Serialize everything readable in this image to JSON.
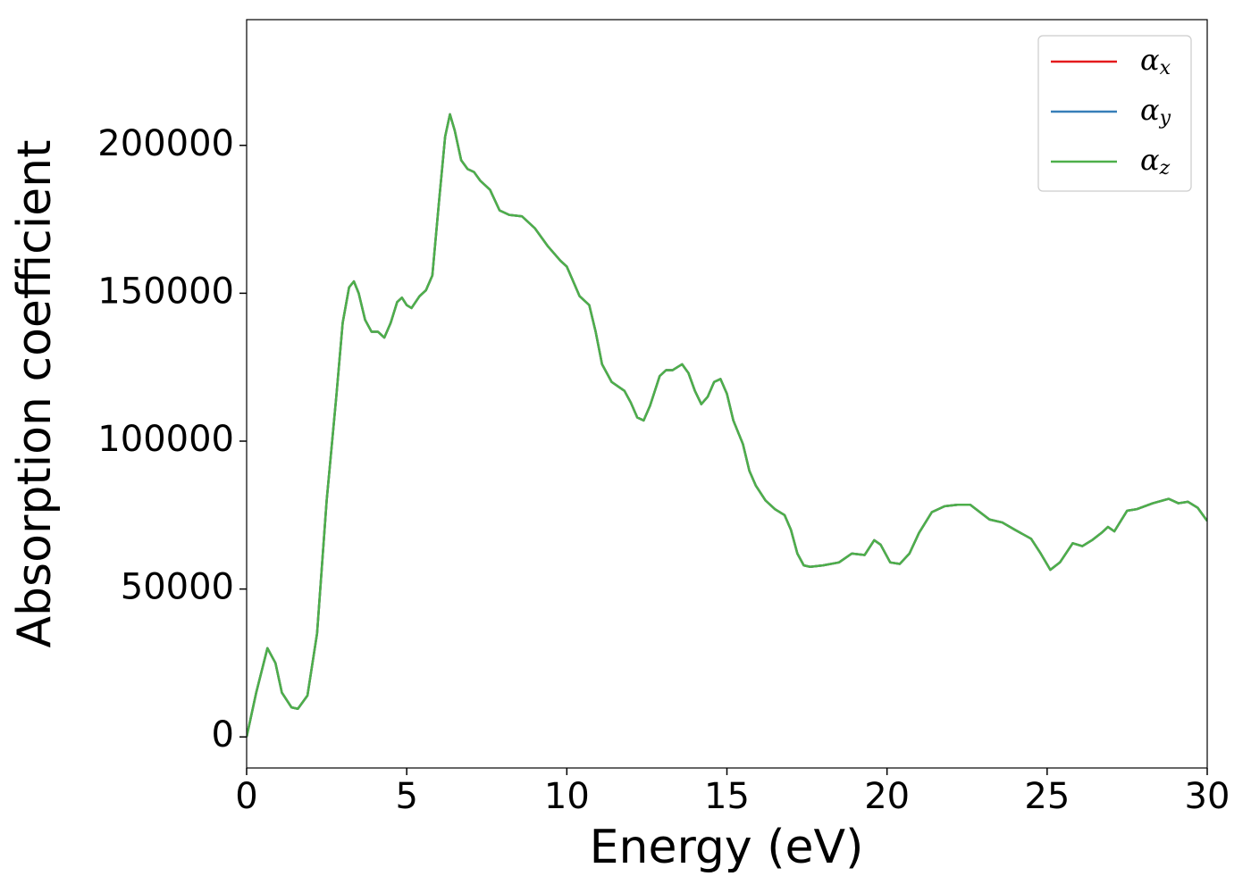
{
  "chart_data": {
    "type": "line",
    "xlabel": "Energy (eV)",
    "ylabel": "Absorption coefficient",
    "x": [
      0,
      0.3,
      0.65,
      0.9,
      1.1,
      1.4,
      1.6,
      1.9,
      2.2,
      2.5,
      2.8,
      3.0,
      3.2,
      3.35,
      3.5,
      3.7,
      3.9,
      4.1,
      4.3,
      4.5,
      4.7,
      4.85,
      5.0,
      5.15,
      5.4,
      5.6,
      5.8,
      6.0,
      6.2,
      6.35,
      6.5,
      6.7,
      6.9,
      7.1,
      7.3,
      7.6,
      7.9,
      8.2,
      8.6,
      9.0,
      9.4,
      9.8,
      10.0,
      10.2,
      10.4,
      10.7,
      10.9,
      11.1,
      11.4,
      11.8,
      12.0,
      12.2,
      12.4,
      12.6,
      12.9,
      13.1,
      13.3,
      13.6,
      13.8,
      14.0,
      14.2,
      14.4,
      14.6,
      14.8,
      15.0,
      15.2,
      15.5,
      15.7,
      15.9,
      16.2,
      16.5,
      16.8,
      17.0,
      17.2,
      17.4,
      17.6,
      18.0,
      18.5,
      18.9,
      19.3,
      19.6,
      19.8,
      20.1,
      20.4,
      20.7,
      21.0,
      21.4,
      21.8,
      22.2,
      22.6,
      22.9,
      23.2,
      23.6,
      24.0,
      24.5,
      24.8,
      25.1,
      25.4,
      25.8,
      26.1,
      26.4,
      26.7,
      26.9,
      27.1,
      27.5,
      27.8,
      28.3,
      28.8,
      29.1,
      29.4,
      29.7,
      30.0
    ],
    "series": [
      {
        "name": "αx",
        "color": "#e41a1c",
        "values": [
          0,
          15000,
          30000,
          25000,
          15000,
          10000,
          9500,
          14000,
          35000,
          80000,
          115000,
          140000,
          152000,
          154000,
          150000,
          141000,
          137000,
          137000,
          135000,
          140000,
          147000,
          148500,
          146000,
          145000,
          149000,
          151000,
          156000,
          180000,
          203000,
          210500,
          205000,
          195000,
          192000,
          191000,
          188000,
          185000,
          178000,
          176500,
          176000,
          172000,
          166000,
          161000,
          159000,
          154000,
          149000,
          146000,
          137000,
          126000,
          120000,
          117000,
          113000,
          108000,
          107000,
          112000,
          122000,
          124000,
          124000,
          126000,
          123000,
          117000,
          112500,
          115000,
          120000,
          121000,
          116000,
          107000,
          99000,
          90000,
          85000,
          80000,
          77000,
          75000,
          70000,
          62000,
          58000,
          57500,
          58000,
          59000,
          62000,
          61500,
          66500,
          65000,
          59000,
          58500,
          62000,
          69000,
          76000,
          78000,
          78500,
          78500,
          76000,
          73500,
          72500,
          70000,
          67000,
          62000,
          56500,
          59000,
          65500,
          64500,
          66500,
          69000,
          71000,
          69500,
          76500,
          77000,
          79000,
          80500,
          79000,
          79500,
          77500,
          73000
        ]
      },
      {
        "name": "αy",
        "color": "#377eb8",
        "values": [
          0,
          15000,
          30000,
          25000,
          15000,
          10000,
          9500,
          14000,
          35000,
          80000,
          115000,
          140000,
          152000,
          154000,
          150000,
          141000,
          137000,
          137000,
          135000,
          140000,
          147000,
          148500,
          146000,
          145000,
          149000,
          151000,
          156000,
          180000,
          203000,
          210500,
          205000,
          195000,
          192000,
          191000,
          188000,
          185000,
          178000,
          176500,
          176000,
          172000,
          166000,
          161000,
          159000,
          154000,
          149000,
          146000,
          137000,
          126000,
          120000,
          117000,
          113000,
          108000,
          107000,
          112000,
          122000,
          124000,
          124000,
          126000,
          123000,
          117000,
          112500,
          115000,
          120000,
          121000,
          116000,
          107000,
          99000,
          90000,
          85000,
          80000,
          77000,
          75000,
          70000,
          62000,
          58000,
          57500,
          58000,
          59000,
          62000,
          61500,
          66500,
          65000,
          59000,
          58500,
          62000,
          69000,
          76000,
          78000,
          78500,
          78500,
          76000,
          73500,
          72500,
          70000,
          67000,
          62000,
          56500,
          59000,
          65500,
          64500,
          66500,
          69000,
          71000,
          69500,
          76500,
          77000,
          79000,
          80500,
          79000,
          79500,
          77500,
          73000
        ]
      },
      {
        "name": "αz",
        "color": "#4daf4a",
        "values": [
          0,
          15000,
          30000,
          25000,
          15000,
          10000,
          9500,
          14000,
          35000,
          80000,
          115000,
          140000,
          152000,
          154000,
          150000,
          141000,
          137000,
          137000,
          135000,
          140000,
          147000,
          148500,
          146000,
          145000,
          149000,
          151000,
          156000,
          180000,
          203000,
          210500,
          205000,
          195000,
          192000,
          191000,
          188000,
          185000,
          178000,
          176500,
          176000,
          172000,
          166000,
          161000,
          159000,
          154000,
          149000,
          146000,
          137000,
          126000,
          120000,
          117000,
          113000,
          108000,
          107000,
          112000,
          122000,
          124000,
          124000,
          126000,
          123000,
          117000,
          112500,
          115000,
          120000,
          121000,
          116000,
          107000,
          99000,
          90000,
          85000,
          80000,
          77000,
          75000,
          70000,
          62000,
          58000,
          57500,
          58000,
          59000,
          62000,
          61500,
          66500,
          65000,
          59000,
          58500,
          62000,
          69000,
          76000,
          78000,
          78500,
          78500,
          76000,
          73500,
          72500,
          70000,
          67000,
          62000,
          56500,
          59000,
          65500,
          64500,
          66500,
          69000,
          71000,
          69500,
          76500,
          77000,
          79000,
          80500,
          79000,
          79500,
          77500,
          73000
        ]
      }
    ],
    "xlim": [
      0,
      30
    ],
    "ylim": [
      -10500,
      242500
    ],
    "xticks": [
      0,
      5,
      10,
      15,
      20,
      25,
      30
    ],
    "yticks": [
      0,
      50000,
      100000,
      150000,
      200000
    ],
    "legend": "upper right"
  }
}
